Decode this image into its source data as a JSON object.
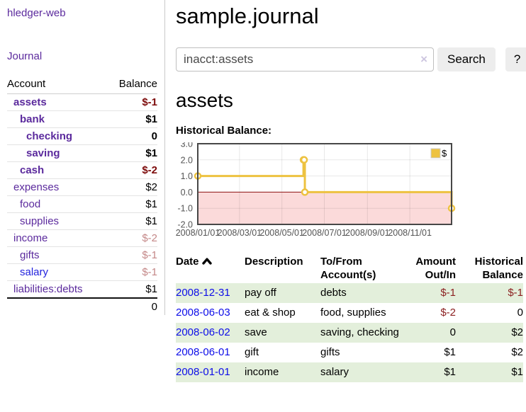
{
  "app": {
    "brand": "hledger-web",
    "nav_journal": "Journal"
  },
  "sidebar": {
    "header": {
      "account": "Account",
      "balance": "Balance"
    },
    "accounts": [
      {
        "name": "assets",
        "balance": "$-1"
      },
      {
        "name": "bank",
        "balance": "$1"
      },
      {
        "name": "checking",
        "balance": "0"
      },
      {
        "name": "saving",
        "balance": "$1"
      },
      {
        "name": "cash",
        "balance": "$-2"
      },
      {
        "name": "expenses",
        "balance": "$2"
      },
      {
        "name": "food",
        "balance": "$1"
      },
      {
        "name": "supplies",
        "balance": "$1"
      },
      {
        "name": "income",
        "balance": "$-2"
      },
      {
        "name": "gifts",
        "balance": "$-1"
      },
      {
        "name": "salary",
        "balance": "$-1"
      },
      {
        "name": "liabilities:debts",
        "balance": "$1"
      }
    ],
    "total": "0"
  },
  "header": {
    "title": "sample.journal"
  },
  "search": {
    "value": "inacct:assets",
    "clear_icon": "×",
    "button_label": "Search",
    "help_label": "?"
  },
  "account_page": {
    "title": "assets",
    "chart_label": "Historical Balance:"
  },
  "chart_data": {
    "type": "line",
    "step": true,
    "title": "Historical Balance",
    "x_type": "date",
    "xlim": [
      "2008/01/01",
      "2008/12/31"
    ],
    "ylim": [
      -2,
      3
    ],
    "yticks": [
      3.0,
      2.0,
      1.0,
      0.0,
      -1.0,
      -2.0
    ],
    "xtick_labels": [
      "2008/01/01",
      "2008/03/01",
      "2008/05/01",
      "2008/07/01",
      "2008/09/01",
      "2008/11/01"
    ],
    "series": [
      {
        "name": "$",
        "color": "#edc240",
        "points": [
          [
            "2008/01/01",
            1
          ],
          [
            "2008/06/01",
            2
          ],
          [
            "2008/06/02",
            2
          ],
          [
            "2008/06/03",
            0
          ],
          [
            "2008/12/31",
            -1
          ]
        ]
      }
    ],
    "grid": true,
    "legend_position": "top-right",
    "negative_region_color": "#fbdada",
    "zero_line_color": "#8c1010",
    "border_color": "#474747"
  },
  "register": {
    "columns": {
      "date": "Date",
      "description": "Description",
      "accounts_line1": "To/From",
      "accounts_line2": "Account(s)",
      "amount_line1": "Amount",
      "amount_line2": "Out/In",
      "balance_line1": "Historical",
      "balance_line2": "Balance"
    },
    "rows": [
      {
        "date": "2008-12-31",
        "description": "pay off",
        "accounts": "debts",
        "amount": "$-1",
        "balance": "$-1"
      },
      {
        "date": "2008-06-03",
        "description": "eat & shop",
        "accounts": "food, supplies",
        "amount": "$-2",
        "balance": "0"
      },
      {
        "date": "2008-06-02",
        "description": "save",
        "accounts": "saving, checking",
        "amount": "0",
        "balance": "$2"
      },
      {
        "date": "2008-06-01",
        "description": "gift",
        "accounts": "gifts",
        "amount": "$1",
        "balance": "$2"
      },
      {
        "date": "2008-01-01",
        "description": "income",
        "accounts": "salary",
        "amount": "$1",
        "balance": "$1"
      }
    ]
  }
}
